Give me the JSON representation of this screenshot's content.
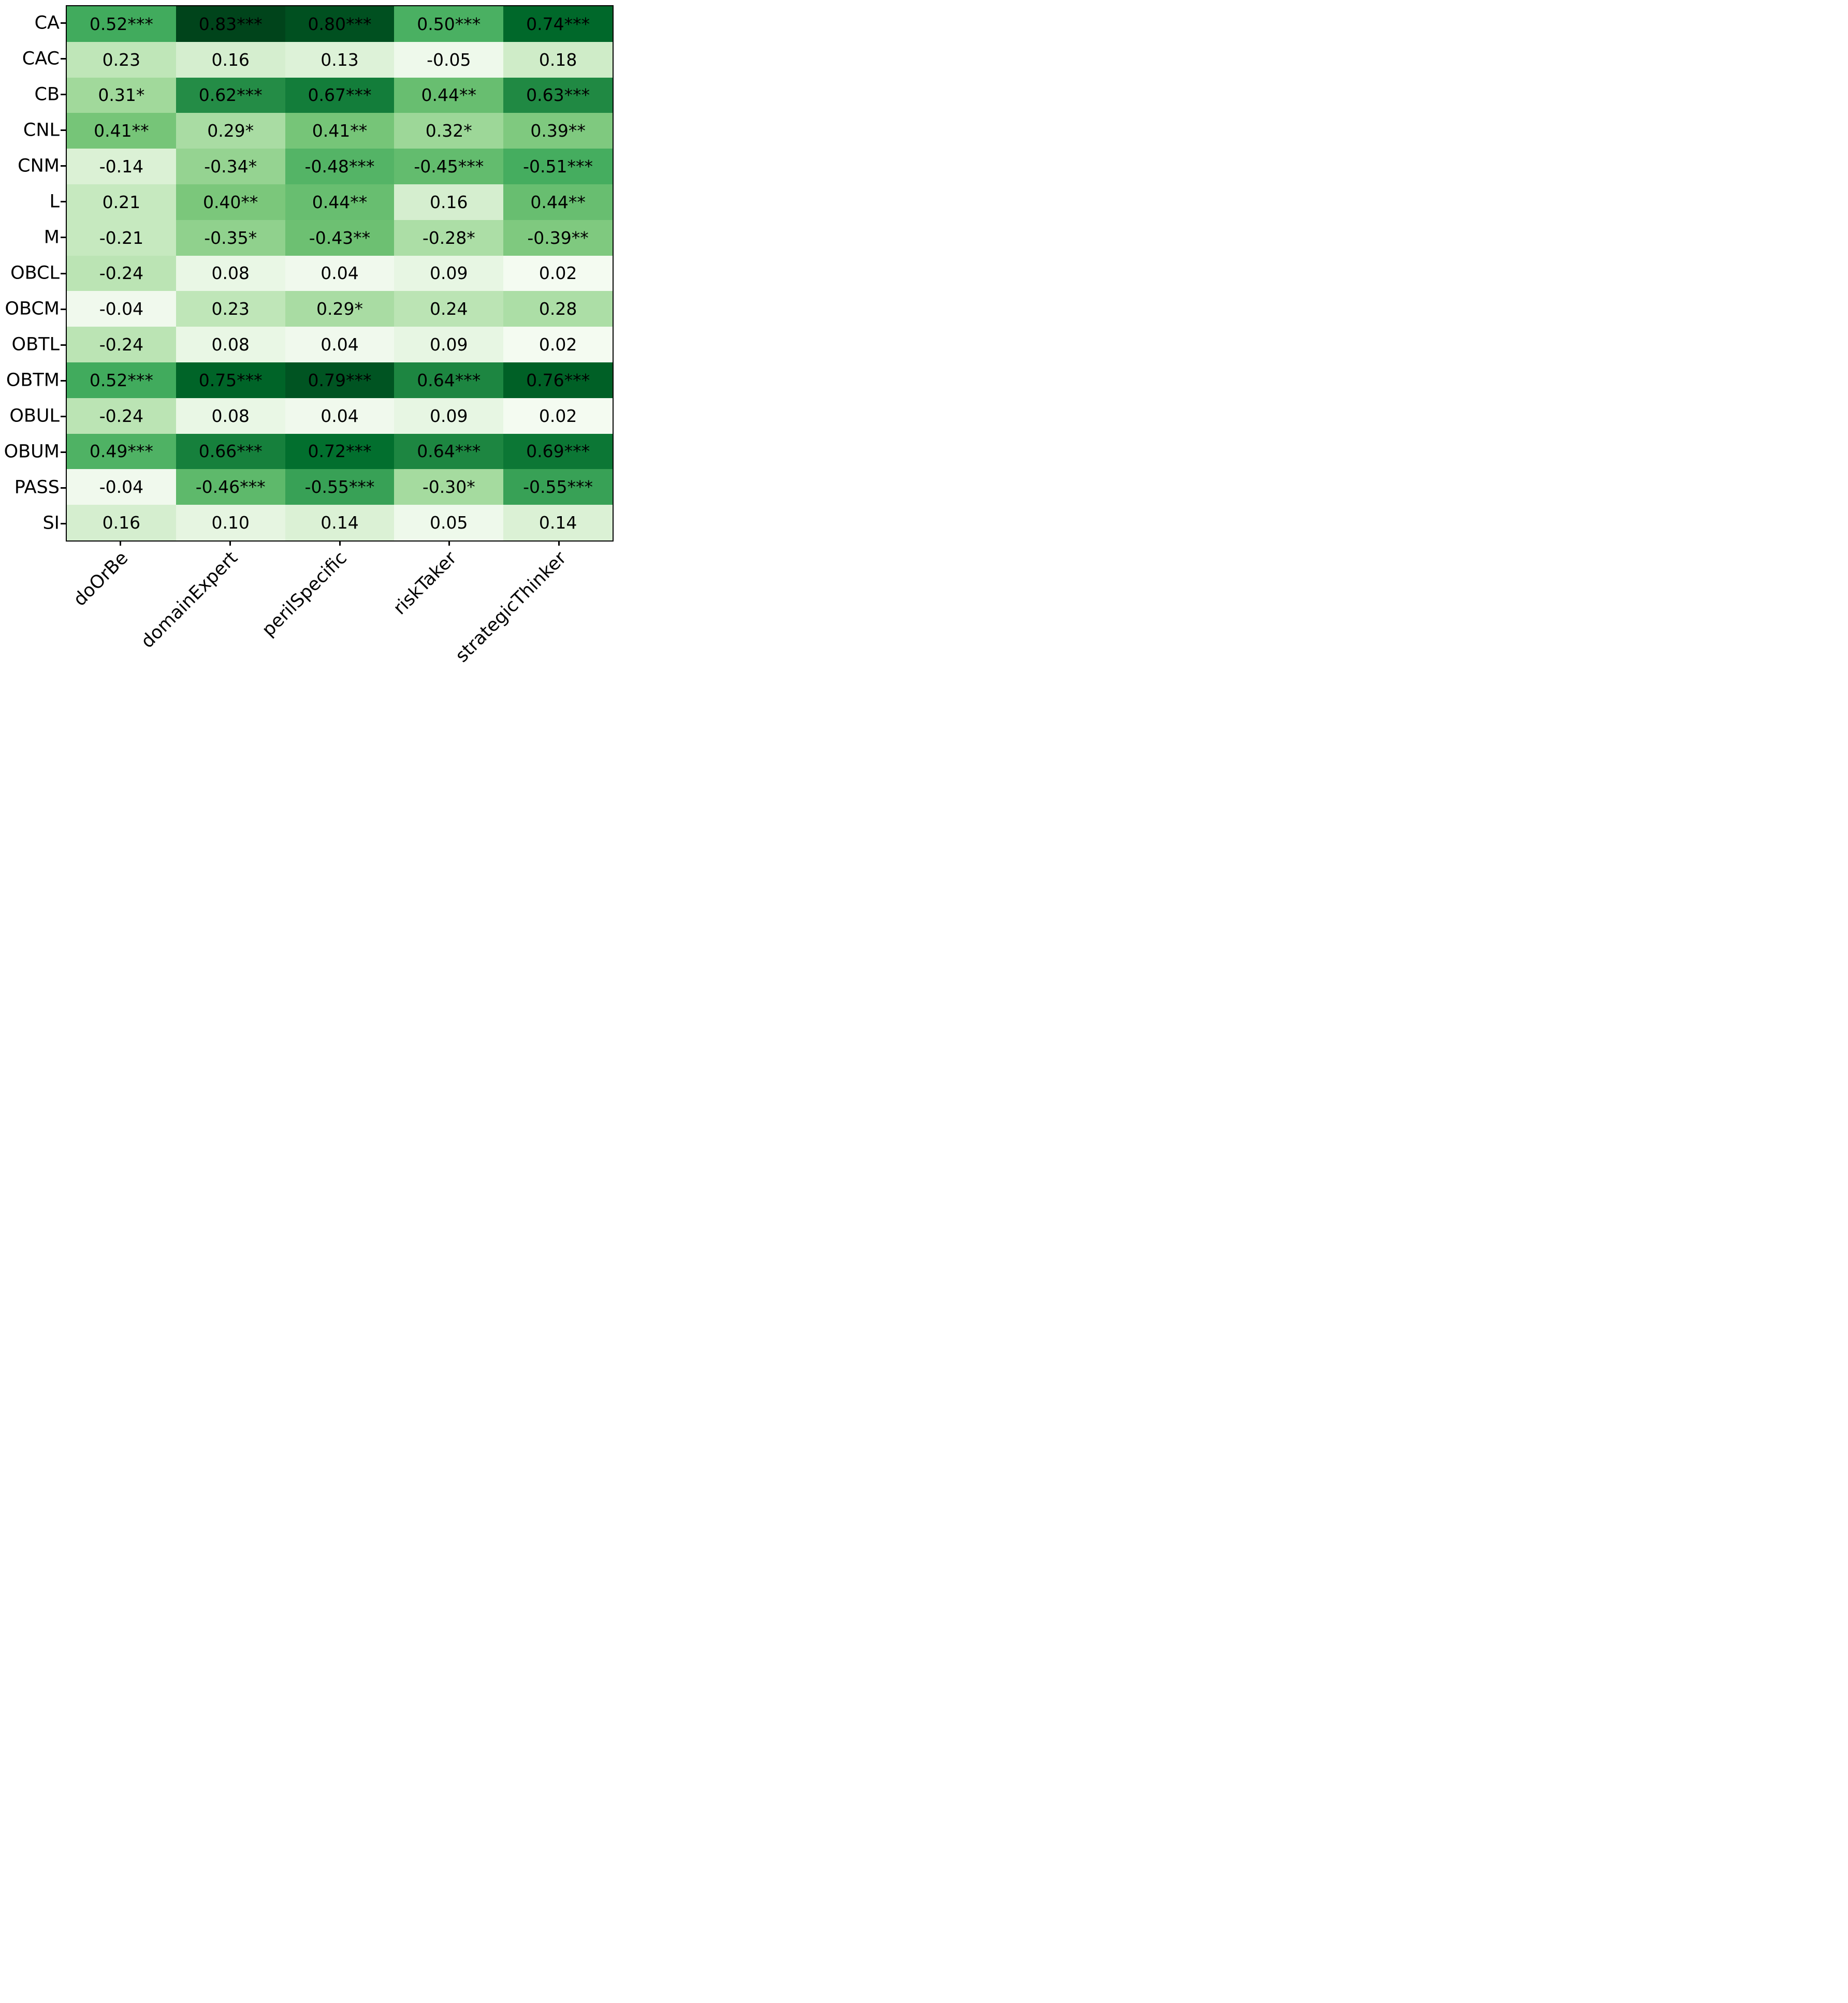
{
  "chart_data": {
    "type": "heatmap",
    "title": "",
    "xlabel": "",
    "ylabel": "",
    "rows": [
      "CA",
      "CAC",
      "CB",
      "CNL",
      "CNM",
      "L",
      "M",
      "OBCL",
      "OBCM",
      "OBTL",
      "OBTM",
      "OBUL",
      "OBUM",
      "PASS",
      "SI"
    ],
    "columns": [
      "doOrBe",
      "domainExpert",
      "perilSpecific",
      "riskTaker",
      "strategicThinker"
    ],
    "cell_labels": [
      [
        "0.52***",
        "0.83***",
        "0.80***",
        "0.50***",
        "0.74***"
      ],
      [
        "0.23",
        "0.16",
        "0.13",
        "-0.05",
        "0.18"
      ],
      [
        "0.31*",
        "0.62***",
        "0.67***",
        "0.44**",
        "0.63***"
      ],
      [
        "0.41**",
        "0.29*",
        "0.41**",
        "0.32*",
        "0.39**"
      ],
      [
        "-0.14",
        "-0.34*",
        "-0.48***",
        "-0.45***",
        "-0.51***"
      ],
      [
        "0.21",
        "0.40**",
        "0.44**",
        "0.16",
        "0.44**"
      ],
      [
        "-0.21",
        "-0.35*",
        "-0.43**",
        "-0.28*",
        "-0.39**"
      ],
      [
        "-0.24",
        "0.08",
        "0.04",
        "0.09",
        "0.02"
      ],
      [
        "-0.04",
        "0.23",
        "0.29*",
        "0.24",
        "0.28"
      ],
      [
        "-0.24",
        "0.08",
        "0.04",
        "0.09",
        "0.02"
      ],
      [
        "0.52***",
        "0.75***",
        "0.79***",
        "0.64***",
        "0.76***"
      ],
      [
        "-0.24",
        "0.08",
        "0.04",
        "0.09",
        "0.02"
      ],
      [
        "0.49***",
        "0.66***",
        "0.72***",
        "0.64***",
        "0.69***"
      ],
      [
        "-0.04",
        "-0.46***",
        "-0.55***",
        "-0.30*",
        "-0.55***"
      ],
      [
        "0.16",
        "0.10",
        "0.14",
        "0.05",
        "0.14"
      ]
    ],
    "values": [
      [
        0.52,
        0.83,
        0.8,
        0.5,
        0.74
      ],
      [
        0.23,
        0.16,
        0.13,
        -0.05,
        0.18
      ],
      [
        0.31,
        0.62,
        0.67,
        0.44,
        0.63
      ],
      [
        0.41,
        0.29,
        0.41,
        0.32,
        0.39
      ],
      [
        -0.14,
        -0.34,
        -0.48,
        -0.45,
        -0.51
      ],
      [
        0.21,
        0.4,
        0.44,
        0.16,
        0.44
      ],
      [
        -0.21,
        -0.35,
        -0.43,
        -0.28,
        -0.39
      ],
      [
        -0.24,
        0.08,
        0.04,
        0.09,
        0.02
      ],
      [
        -0.04,
        0.23,
        0.29,
        0.24,
        0.28
      ],
      [
        -0.24,
        0.08,
        0.04,
        0.09,
        0.02
      ],
      [
        0.52,
        0.75,
        0.79,
        0.64,
        0.76
      ],
      [
        -0.24,
        0.08,
        0.04,
        0.09,
        0.02
      ],
      [
        0.49,
        0.66,
        0.72,
        0.64,
        0.69
      ],
      [
        -0.04,
        -0.46,
        -0.55,
        -0.3,
        -0.55
      ],
      [
        0.16,
        0.1,
        0.14,
        0.05,
        0.14
      ]
    ],
    "colormap": {
      "name": "Greens",
      "stops": [
        "#f7fcf5",
        "#e5f5e0",
        "#c7e9c0",
        "#a1d99b",
        "#74c476",
        "#41ab5d",
        "#238b45",
        "#006d2c",
        "#00441b"
      ],
      "map_by": "abs",
      "vmin": 0,
      "vmax": 0.83
    },
    "annotation_text_color": "#000000",
    "axis_color": "#000000",
    "legend_position": "none",
    "grid": "off"
  }
}
